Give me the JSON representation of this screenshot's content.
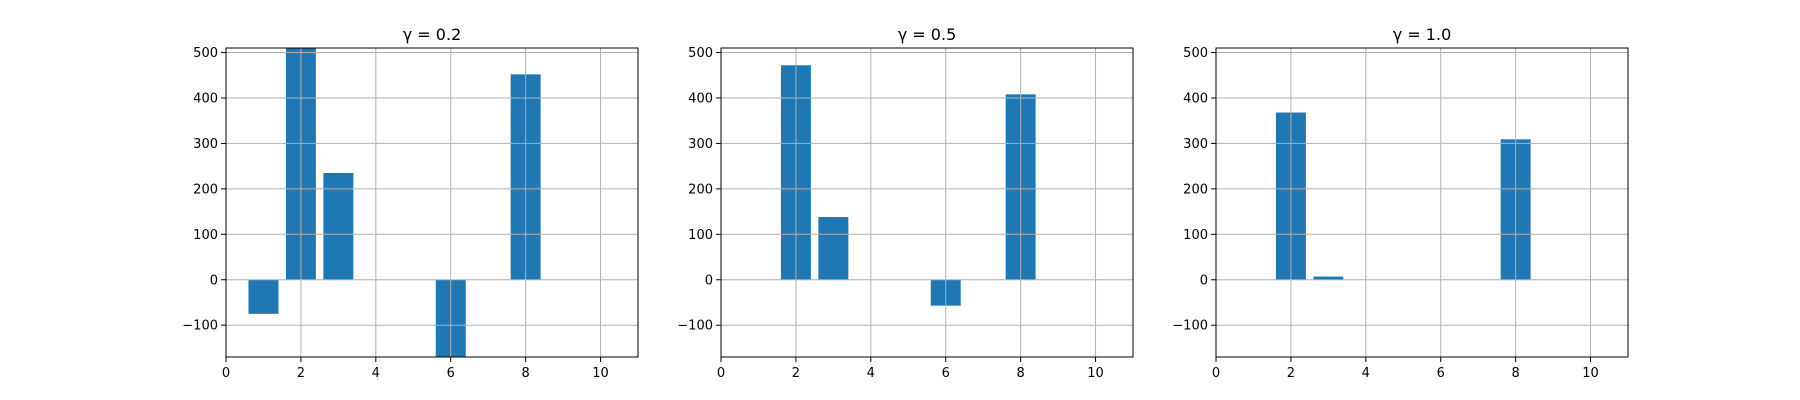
{
  "chart_data": [
    {
      "type": "bar",
      "title": "γ = 0.2",
      "x": [
        1,
        2,
        3,
        4,
        5,
        6,
        7,
        8,
        9,
        10
      ],
      "values": [
        -75,
        510,
        235,
        0,
        0,
        -185,
        0,
        452,
        0,
        0
      ],
      "xlabel": "",
      "ylabel": "",
      "xlim": [
        0,
        11
      ],
      "ylim": [
        -170,
        510
      ],
      "xticks": [
        0,
        2,
        4,
        6,
        8,
        10
      ],
      "yticks": [
        -100,
        0,
        100,
        200,
        300,
        400,
        500
      ],
      "grid": true
    },
    {
      "type": "bar",
      "title": "γ = 0.5",
      "x": [
        1,
        2,
        3,
        4,
        5,
        6,
        7,
        8,
        9,
        10
      ],
      "values": [
        0,
        472,
        138,
        0,
        0,
        -57,
        0,
        408,
        0,
        0
      ],
      "xlabel": "",
      "ylabel": "",
      "xlim": [
        0,
        11
      ],
      "ylim": [
        -170,
        510
      ],
      "xticks": [
        0,
        2,
        4,
        6,
        8,
        10
      ],
      "yticks": [
        -100,
        0,
        100,
        200,
        300,
        400,
        500
      ],
      "grid": true
    },
    {
      "type": "bar",
      "title": "γ = 1.0",
      "x": [
        1,
        2,
        3,
        4,
        5,
        6,
        7,
        8,
        9,
        10
      ],
      "values": [
        0,
        368,
        7,
        0,
        0,
        0,
        0,
        309,
        0,
        0
      ],
      "xlabel": "",
      "ylabel": "",
      "xlim": [
        0,
        11
      ],
      "ylim": [
        -170,
        510
      ],
      "xticks": [
        0,
        2,
        4,
        6,
        8,
        10
      ],
      "yticks": [
        -100,
        0,
        100,
        200,
        300,
        400,
        500
      ],
      "grid": true
    }
  ],
  "colors": {
    "bar": "#1f77b4",
    "grid": "#b0b0b0",
    "axis": "#000000",
    "background": "#ffffff"
  }
}
